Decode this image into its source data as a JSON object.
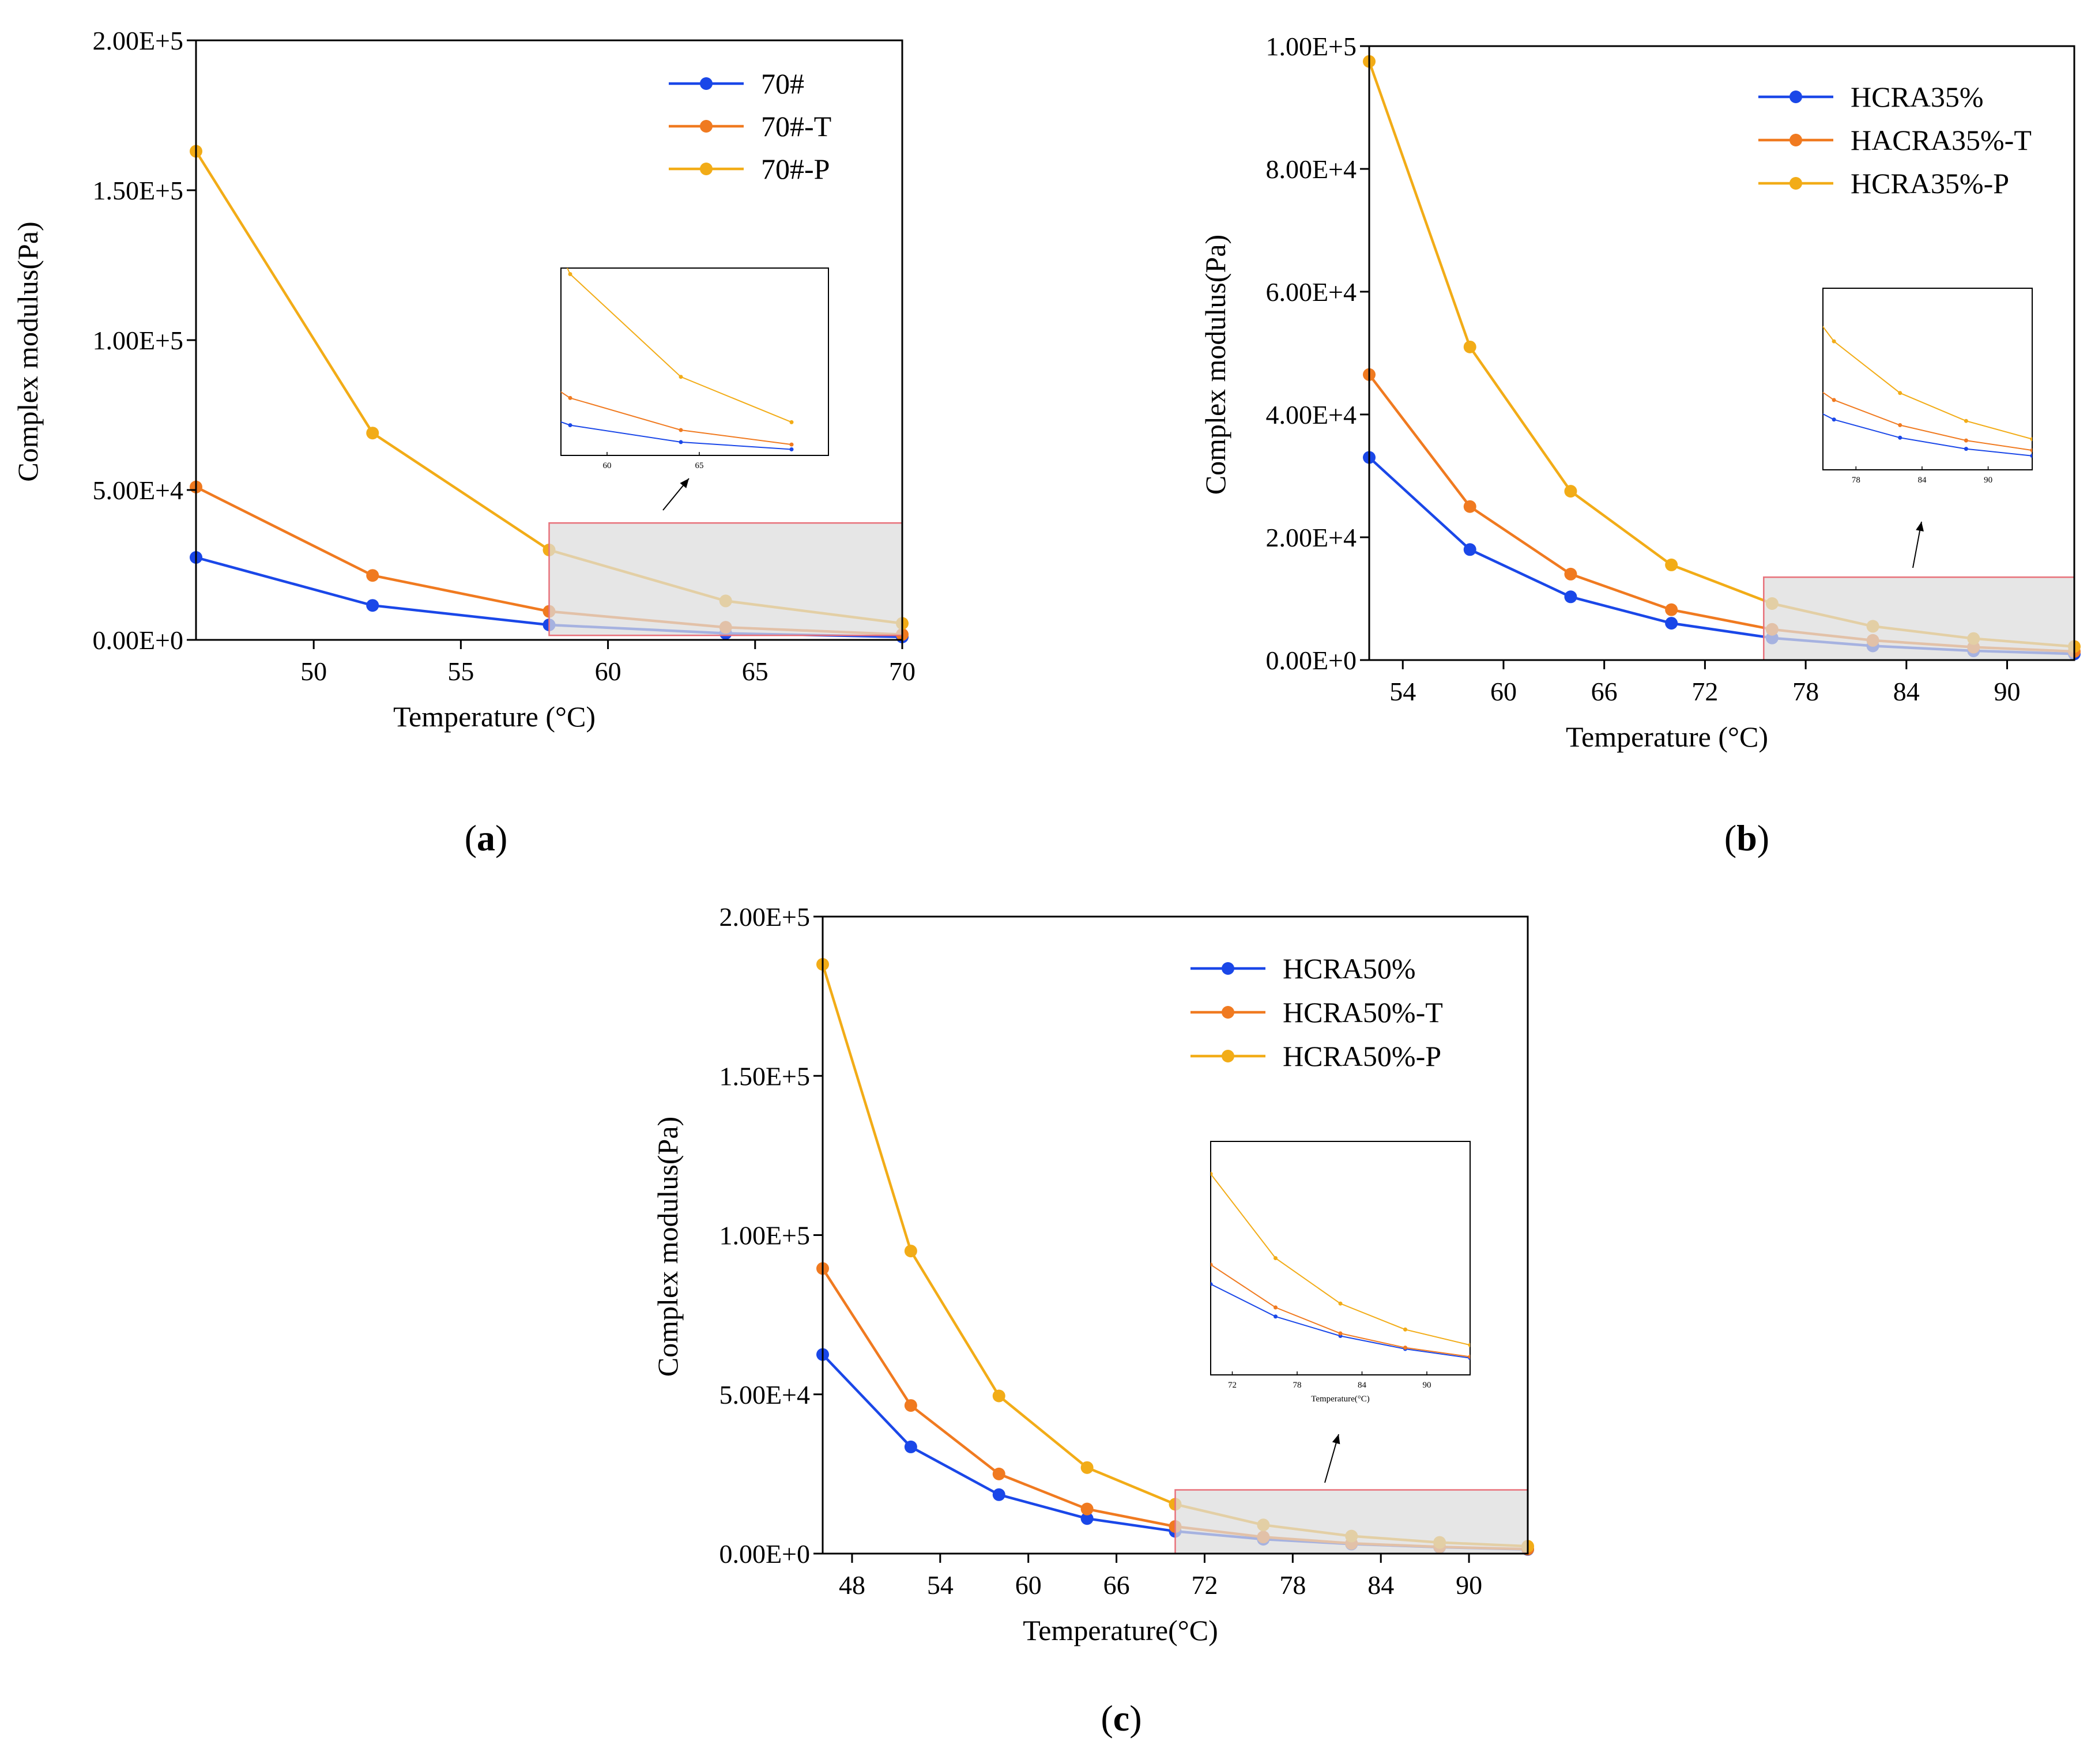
{
  "colors": {
    "blue": "#1a47e8",
    "orange": "#f07a20",
    "yellow": "#f2ac17",
    "zoom_fill": "#dcdcdc",
    "zoom_stroke": "#e8707a"
  },
  "chart_data": [
    {
      "id": "a",
      "type": "line",
      "panel_label": "a",
      "xlabel": "Temperature (°C)",
      "ylabel": "Complex modulus(Pa)",
      "x": [
        46,
        52,
        58,
        64,
        70
      ],
      "xlim": [
        46,
        70
      ],
      "ylim": [
        0,
        200000
      ],
      "xticks": [
        50,
        55,
        60,
        65,
        70
      ],
      "yticks": [
        0,
        50000,
        100000,
        150000,
        200000
      ],
      "ytick_labels": [
        "0.00E+0",
        "5.00E+4",
        "1.00E+5",
        "1.50E+5",
        "2.00E+5"
      ],
      "legend_position": "top-right",
      "series": [
        {
          "name": "70#",
          "color": "blue",
          "values": [
            27500,
            11500,
            5000,
            2200,
            1000
          ]
        },
        {
          "name": "70#-T",
          "color": "orange",
          "values": [
            51000,
            21500,
            9500,
            4200,
            1800
          ]
        },
        {
          "name": "70#-P",
          "color": "yellow",
          "values": [
            163000,
            69000,
            30000,
            13000,
            5500
          ]
        }
      ],
      "zoom_region": {
        "x": [
          58,
          70
        ],
        "y": [
          1500,
          39000
        ]
      },
      "inset": {
        "x_range": [
          57.5,
          72
        ],
        "y_range": [
          0,
          31000
        ],
        "xticks": [
          60,
          65
        ],
        "xlabel": ""
      }
    },
    {
      "id": "b",
      "type": "line",
      "panel_label": "b",
      "xlabel": "Temperature (°C)",
      "ylabel": "Complex modulus(Pa)",
      "x": [
        52,
        58,
        64,
        70,
        76,
        82,
        88,
        94
      ],
      "xlim": [
        52,
        94
      ],
      "ylim": [
        0,
        100000
      ],
      "xticks": [
        54,
        60,
        66,
        72,
        78,
        84,
        90
      ],
      "yticks": [
        0,
        20000,
        40000,
        60000,
        80000,
        100000
      ],
      "ytick_labels": [
        "0.00E+0",
        "2.00E+4",
        "4.00E+4",
        "6.00E+4",
        "8.00E+4",
        "1.00E+5"
      ],
      "legend_position": "top-right",
      "series": [
        {
          "name": "HCRA35%",
          "color": "blue",
          "values": [
            33000,
            18000,
            10300,
            6000,
            3600,
            2300,
            1500,
            1000
          ]
        },
        {
          "name": "HACRA35%-T",
          "color": "orange",
          "values": [
            46500,
            25000,
            14000,
            8200,
            5000,
            3200,
            2100,
            1400
          ]
        },
        {
          "name": "HCRA35%-P",
          "color": "yellow",
          "values": [
            97500,
            51000,
            27500,
            15500,
            9200,
            5500,
            3500,
            2200
          ]
        }
      ],
      "zoom_region": {
        "x": [
          75.5,
          94
        ],
        "y": [
          0,
          13500
        ]
      },
      "inset": {
        "x_range": [
          75,
          94
        ],
        "y_range": [
          0,
          13000
        ],
        "xticks": [
          78,
          84,
          90
        ],
        "xlabel": ""
      }
    },
    {
      "id": "c",
      "type": "line",
      "panel_label": "c",
      "xlabel": "Temperature(°C)",
      "ylabel": "Complex modulus(Pa)",
      "x": [
        46,
        52,
        58,
        64,
        70,
        76,
        82,
        88,
        94
      ],
      "xlim": [
        46,
        94
      ],
      "ylim": [
        0,
        200000
      ],
      "xticks": [
        48,
        54,
        60,
        66,
        72,
        78,
        84,
        90
      ],
      "yticks": [
        0,
        50000,
        100000,
        150000,
        200000
      ],
      "ytick_labels": [
        "0.00E+0",
        "5.00E+4",
        "1.00E+5",
        "1.50E+5",
        "2.00E+5"
      ],
      "legend_position": "top-right",
      "series": [
        {
          "name": "HCRA50%",
          "color": "blue",
          "values": [
            62500,
            33500,
            18500,
            11000,
            7000,
            4500,
            3000,
            2000,
            1300
          ]
        },
        {
          "name": "HCRA50%-T",
          "color": "orange",
          "values": [
            89500,
            46500,
            25000,
            14000,
            8500,
            5200,
            3200,
            2100,
            1400
          ]
        },
        {
          "name": "HCRA50%-P",
          "color": "yellow",
          "values": [
            185000,
            95000,
            49500,
            27000,
            15500,
            9000,
            5500,
            3500,
            2300
          ]
        }
      ],
      "zoom_region": {
        "x": [
          70,
          94
        ],
        "y": [
          0,
          20000
        ]
      },
      "inset": {
        "x_range": [
          70,
          94
        ],
        "y_range": [
          0,
          18000
        ],
        "xticks": [
          72,
          78,
          84,
          90
        ],
        "xlabel": "Temperature(°C)"
      }
    }
  ]
}
